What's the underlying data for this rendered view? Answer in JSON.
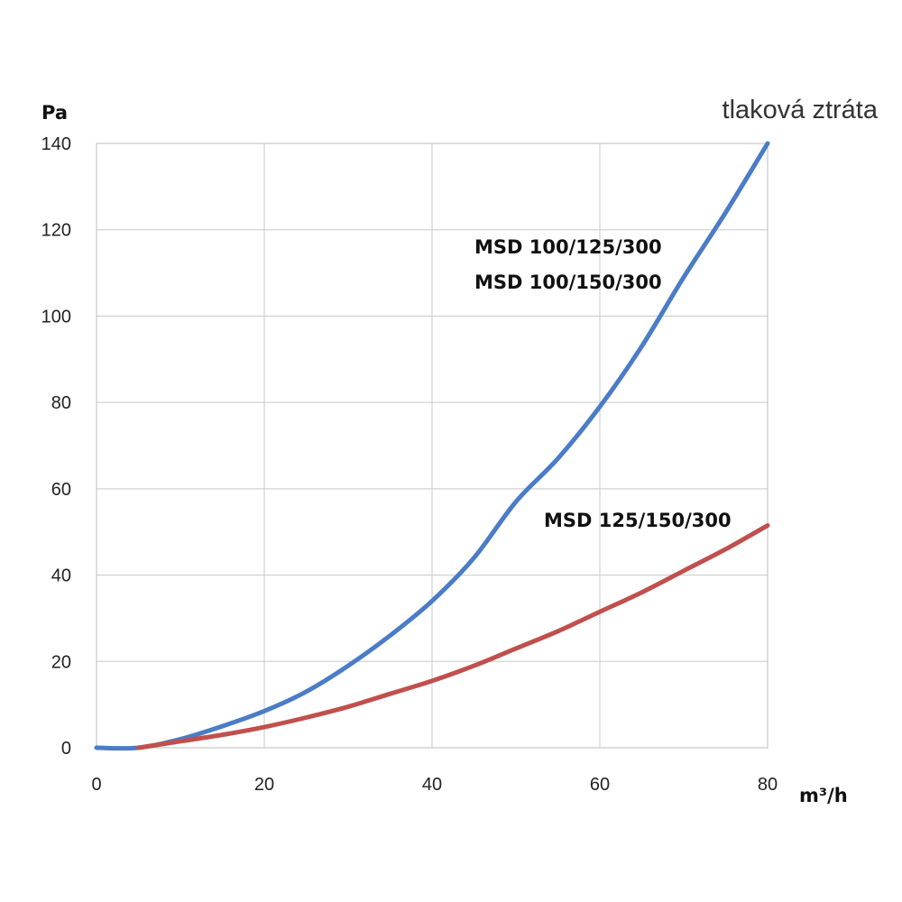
{
  "chart_data": {
    "type": "line",
    "title": "tlaková ztráta",
    "xlabel": "m³/h",
    "ylabel": "Pa",
    "xlim": [
      0,
      80
    ],
    "ylim": [
      0,
      140
    ],
    "x_ticks": [
      "0",
      "20",
      "40",
      "60",
      "80"
    ],
    "y_ticks": [
      "0",
      "20",
      "40",
      "60",
      "80",
      "100",
      "120",
      "140"
    ],
    "grid": true,
    "series": [
      {
        "label_lines": [
          "MSD 100/125/300",
          "MSD 100/150/300"
        ],
        "color": "#4a7cc7",
        "x": [
          0,
          5,
          10,
          15,
          20,
          25,
          30,
          35,
          40,
          45,
          50,
          55,
          60,
          65,
          70,
          75,
          80
        ],
        "y": [
          0,
          0,
          2,
          5,
          8.5,
          13,
          19,
          26,
          34,
          44,
          57,
          67,
          79,
          93,
          109,
          124,
          140
        ]
      },
      {
        "label_lines": [
          "MSD 125/150/300"
        ],
        "color": "#c0504d",
        "x": [
          5,
          10,
          15,
          20,
          25,
          30,
          35,
          40,
          45,
          50,
          55,
          60,
          65,
          70,
          75,
          80
        ],
        "y": [
          0,
          1.5,
          3,
          4.8,
          7,
          9.5,
          12.5,
          15.5,
          19,
          23,
          27,
          31.5,
          36,
          41,
          46,
          51.5
        ]
      }
    ]
  }
}
